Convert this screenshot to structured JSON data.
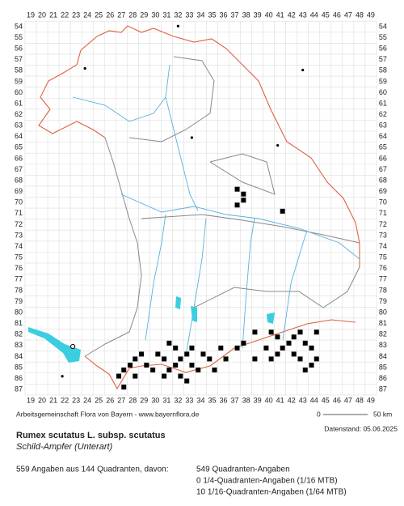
{
  "map": {
    "columns": [
      19,
      20,
      21,
      22,
      23,
      24,
      25,
      26,
      27,
      28,
      29,
      30,
      31,
      32,
      33,
      34,
      35,
      36,
      37,
      38,
      39,
      40,
      41,
      42,
      43,
      44,
      45,
      46,
      47,
      48,
      49
    ],
    "rows": [
      54,
      55,
      56,
      57,
      58,
      59,
      60,
      61,
      62,
      63,
      64,
      65,
      66,
      67,
      68,
      69,
      70,
      71,
      72,
      73,
      74,
      75,
      76,
      77,
      78,
      79,
      80,
      81,
      82,
      83,
      84,
      85,
      86,
      87
    ],
    "credit": "Arbeitsgemeinschaft Flora von Bayern - www.bayernflora.de",
    "scale": {
      "start": "0",
      "end": "50 km"
    },
    "date": "Datenstand: 05.06.2025",
    "title": "Rumex scutatus L. subsp. scutatus",
    "subtitle": "Schild-Ampfer (Unterart)",
    "summary": "559 Angaben aus 144 Quadranten, davon:",
    "counts": [
      "549 Quadranten-Angaben",
      "0 1/4-Quadranten-Angaben (1/16 MTB)",
      "10 1/16-Quadranten-Angaben (1/64 MTB)"
    ]
  }
}
